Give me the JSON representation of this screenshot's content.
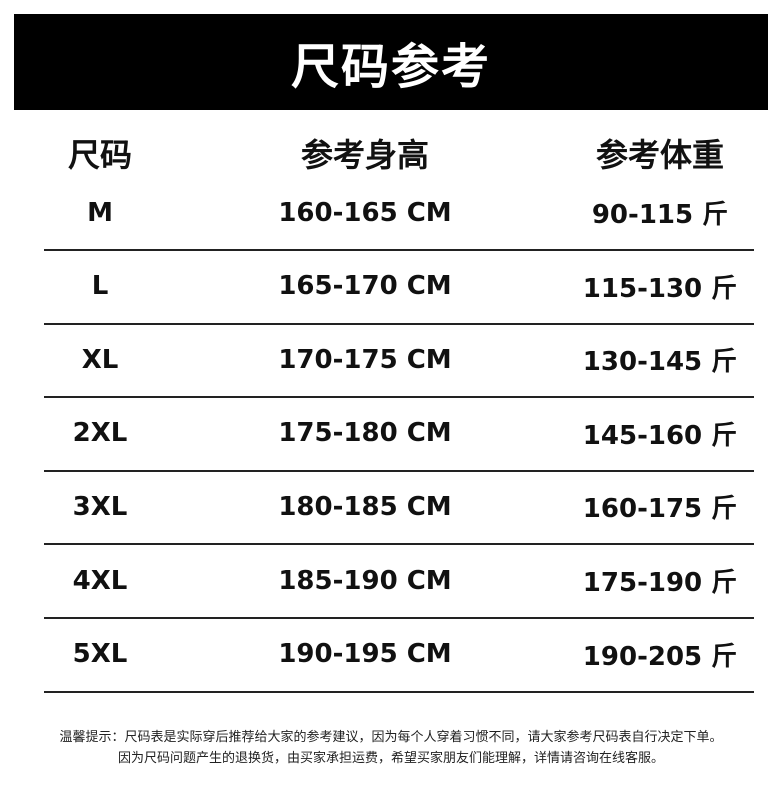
{
  "title": "尺码参考",
  "headers": [
    "尺码",
    "参考身高",
    "参考体重"
  ],
  "rows": [
    {
      "size": "M",
      "height": "160-165 CM",
      "weight": "90-115 斤"
    },
    {
      "size": "L",
      "height": "165-170 CM",
      "weight": "115-130 斤"
    },
    {
      "size": "XL",
      "height": "170-175 CM",
      "weight": "130-145 斤"
    },
    {
      "size": "2XL",
      "height": "175-180 CM",
      "weight": "145-160 斤"
    },
    {
      "size": "3XL",
      "height": "180-185 CM",
      "weight": "160-175 斤"
    },
    {
      "size": "4XL",
      "height": "185-190 CM",
      "weight": "175-190 斤"
    },
    {
      "size": "5XL",
      "height": "190-195 CM",
      "weight": "190-205 斤"
    }
  ],
  "notes": [
    "温馨提示：尺码表是实际穿后推荐给大家的参考建议，因为每个人穿着习惯不同，请大家参考尺码表自行决定下单。",
    "因为尺码问题产生的退换货，由买家承担运费，希望买家朋友们能理解，详情请咨询在线客服。"
  ]
}
